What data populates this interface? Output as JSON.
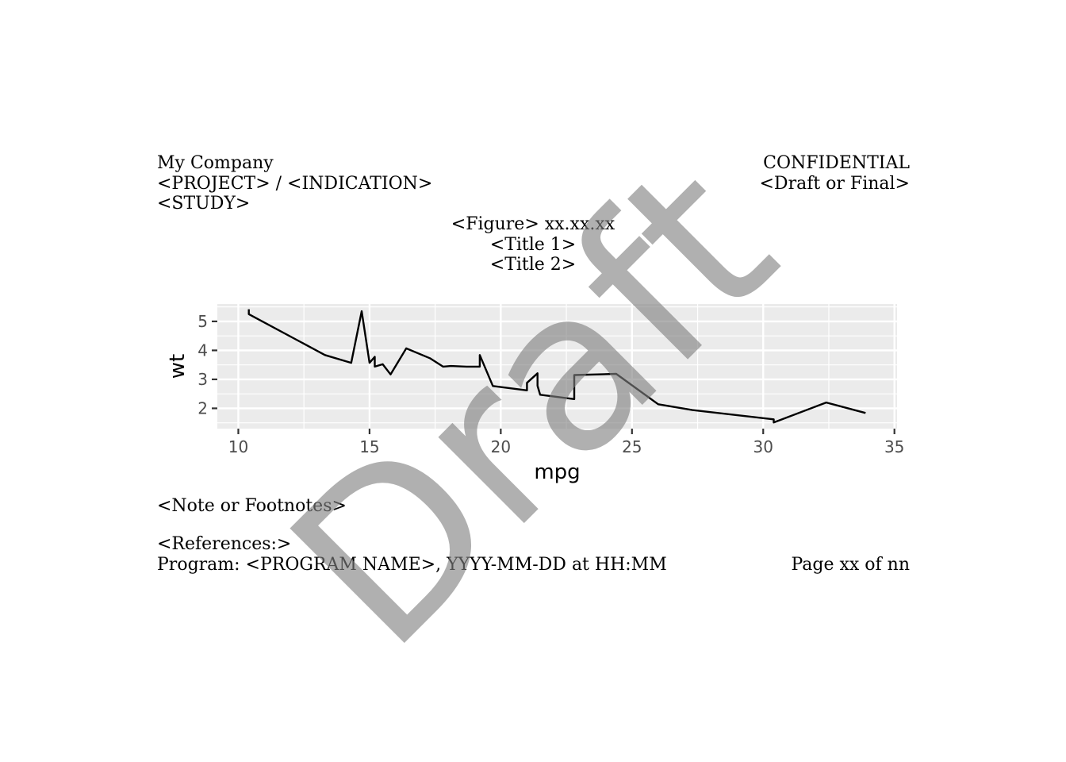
{
  "header": {
    "company": "My Company",
    "project": "<PROJECT> / <INDICATION>",
    "study": "<STUDY>",
    "confidential": "CONFIDENTIAL",
    "status": "<Draft or Final>"
  },
  "titles": {
    "figure": "<Figure> xx.xx.xx",
    "title1": "<Title 1>",
    "title2": "<Title 2>"
  },
  "footer": {
    "notes": "<Note or Footnotes>",
    "references": "<References:>",
    "program": "Program: <PROGRAM NAME>, YYYY-MM-DD at HH:MM",
    "page": "Page xx of nn"
  },
  "watermark": "Draft",
  "chart_data": {
    "type": "line",
    "xlabel": "mpg",
    "ylabel": "wt",
    "xlim": [
      9.2,
      35.1
    ],
    "ylim": [
      1.3,
      5.6
    ],
    "xticks": [
      10,
      15,
      20,
      25,
      30,
      35
    ],
    "yticks": [
      2,
      3,
      4,
      5
    ],
    "grid": true,
    "panel_color": "#ebebeb",
    "line_color": "#000000",
    "series": [
      {
        "x": [
          10.4,
          10.4,
          13.3,
          14.3,
          14.7,
          15.0,
          15.2,
          15.2,
          15.5,
          15.8,
          16.4,
          17.3,
          17.8,
          18.1,
          18.7,
          19.2,
          19.2,
          19.7,
          21.0,
          21.0,
          21.4,
          21.4,
          21.5,
          22.8,
          22.8,
          24.4,
          26.0,
          27.3,
          30.4,
          30.4,
          32.4,
          33.9
        ],
        "y": [
          5.42,
          5.25,
          3.84,
          3.57,
          5.35,
          3.57,
          3.78,
          3.44,
          3.52,
          3.17,
          4.07,
          3.73,
          3.44,
          3.46,
          3.44,
          3.44,
          3.84,
          2.77,
          2.62,
          2.88,
          3.21,
          2.78,
          2.47,
          2.32,
          3.15,
          3.19,
          2.14,
          1.94,
          1.62,
          1.51,
          2.2,
          1.84
        ]
      }
    ]
  }
}
